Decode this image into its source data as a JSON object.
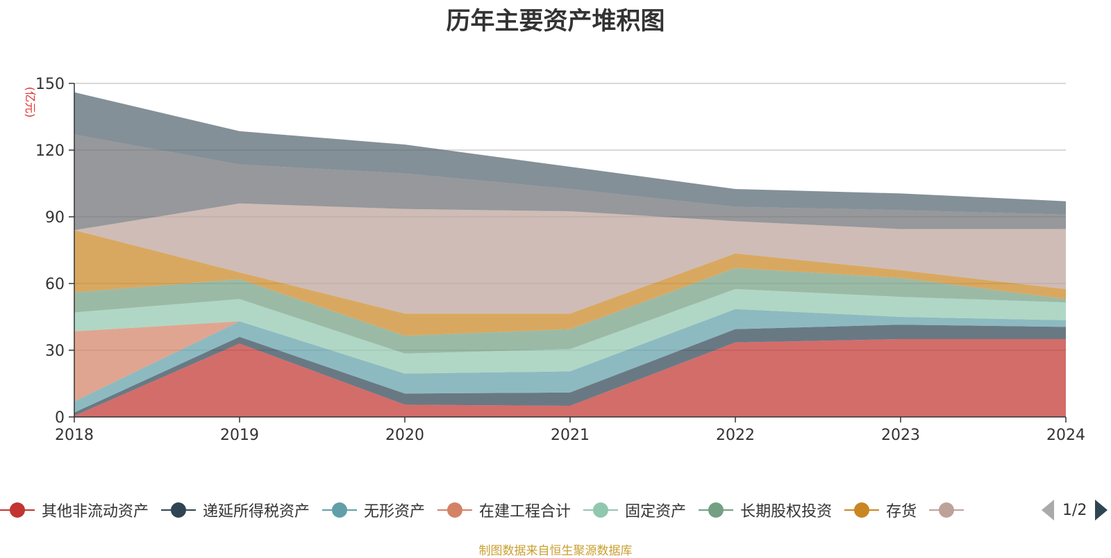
{
  "title": "历年主要资产堆积图",
  "footer": "制图数据来自恒生聚源数据库",
  "legend_page": "1/2",
  "chart_data": {
    "type": "area",
    "stacked": true,
    "title": "历年主要资产堆积图",
    "ylabel": "亿元",
    "ylim": [
      0,
      150
    ],
    "yticks": [
      0,
      30,
      60,
      90,
      120,
      150
    ],
    "grid": true,
    "legend_position": "bottom",
    "x": [
      "2018",
      "2019",
      "2020",
      "2021",
      "2022",
      "2023",
      "2024"
    ],
    "series": [
      {
        "name": "其他非流动资产",
        "color": "#c23531",
        "values": [
          0.5,
          33,
          5.5,
          5,
          33.5,
          35,
          35
        ]
      },
      {
        "name": "递延所得税资产",
        "color": "#2f4554",
        "values": [
          1.5,
          3,
          5,
          6,
          6,
          6.5,
          5.5
        ]
      },
      {
        "name": "无形资产",
        "color": "#61a0a8",
        "values": [
          5,
          7,
          9,
          9.5,
          9,
          3.5,
          3
        ]
      },
      {
        "name": "在建工程合计",
        "color": "#d48265",
        "values": [
          31.5,
          0,
          0,
          0,
          0,
          0,
          0
        ]
      },
      {
        "name": "固定资产",
        "color": "#91c7ae",
        "values": [
          8.5,
          10,
          9,
          10,
          9,
          9,
          8
        ]
      },
      {
        "name": "长期股权投资",
        "color": "#749f83",
        "values": [
          9,
          9,
          8,
          9,
          9.5,
          8.5,
          1.5
        ]
      },
      {
        "name": "存货",
        "color": "#ca8622",
        "values": [
          28,
          3,
          10,
          7,
          6.5,
          3.5,
          4.5
        ]
      },
      {
        "name": "",
        "color": "#bda29a",
        "values": [
          0,
          31,
          47,
          46,
          14.5,
          18.5,
          27
        ]
      },
      {
        "name": "",
        "color": "#6e7074",
        "values": [
          43,
          17.5,
          16,
          10,
          6.5,
          8.5,
          6.5
        ]
      },
      {
        "name": "",
        "color": "#546570",
        "values": [
          19,
          15,
          13,
          10,
          8,
          7.5,
          6
        ]
      }
    ]
  }
}
